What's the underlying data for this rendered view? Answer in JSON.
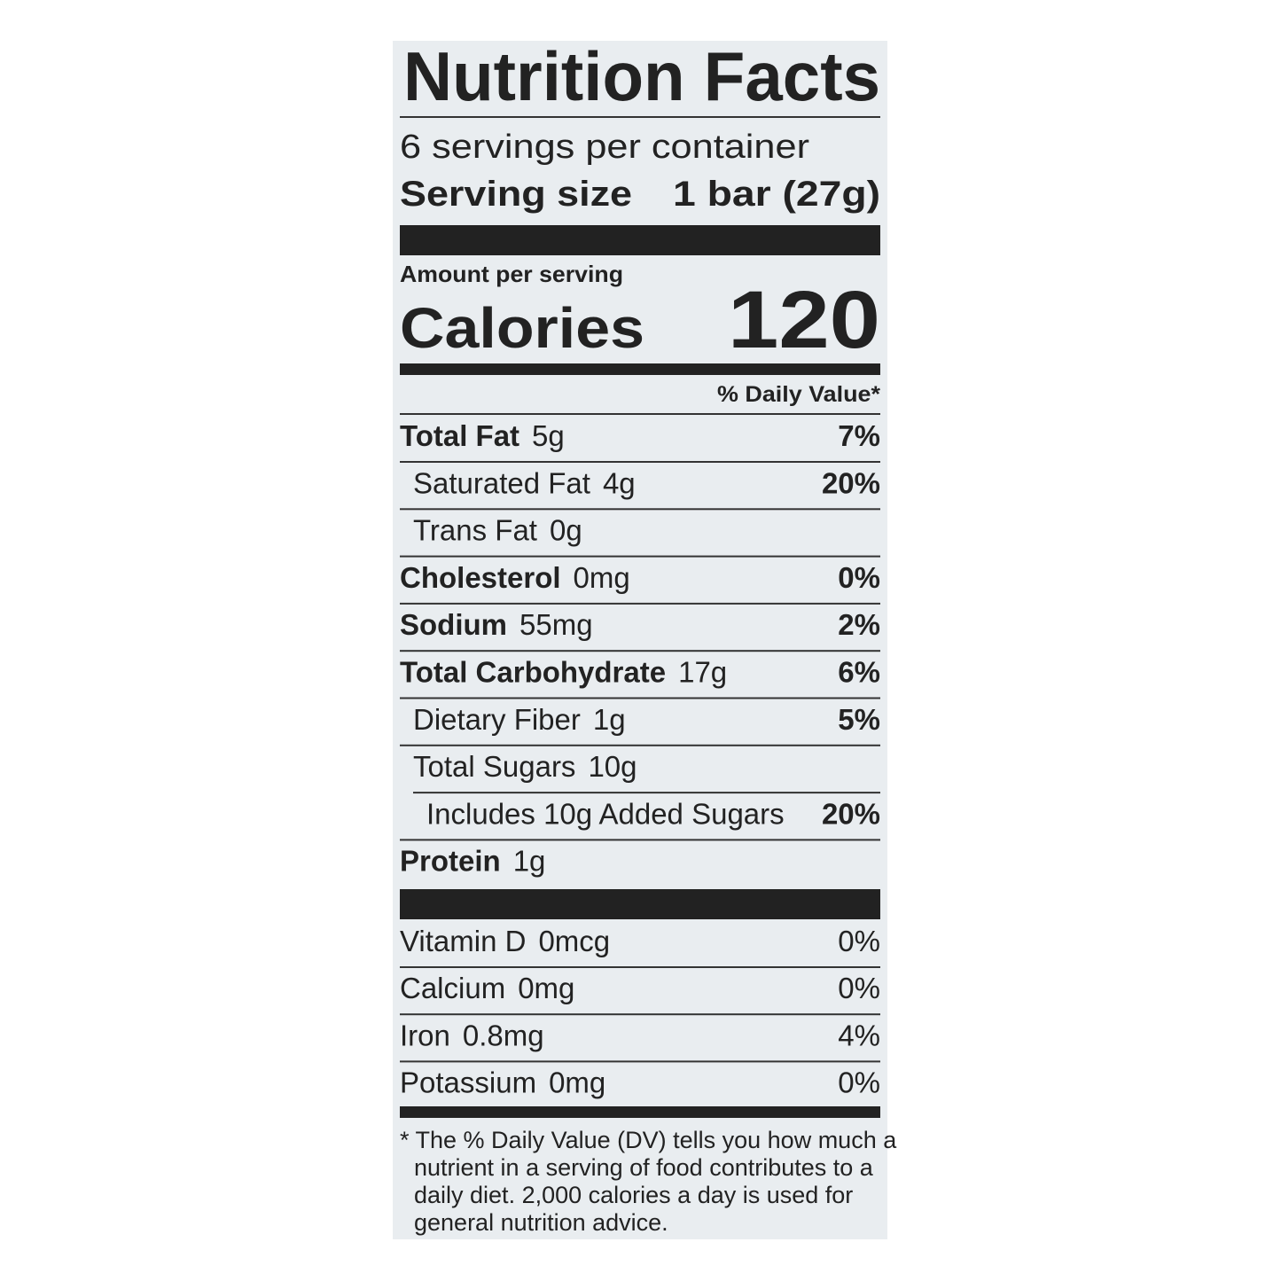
{
  "title": "Nutrition Facts",
  "servings": "6 servings per container",
  "serving_size": {
    "label": "Serving size",
    "value": "1 bar (27g)"
  },
  "amount_per_serving": "Amount per serving",
  "calories": {
    "label": "Calories",
    "value": 120
  },
  "daily_value_header": "% Daily Value*",
  "nutrients": [
    {
      "name": "Total Fat",
      "amount": "5g",
      "dv": "7%"
    },
    {
      "name": "Saturated Fat",
      "amount": "4g",
      "dv": "20%"
    },
    {
      "name": "Trans Fat",
      "amount": "0g"
    },
    {
      "name": "Cholesterol",
      "amount": "0mg",
      "dv": "0%"
    },
    {
      "name": "Sodium",
      "amount": "55mg",
      "dv": "2%"
    },
    {
      "name": "Total Carbohydrate",
      "amount": "17g",
      "dv": "6%"
    },
    {
      "name": "Dietary Fiber",
      "amount": "1g",
      "dv": "5%"
    },
    {
      "name": "Total Sugars",
      "amount": "10g"
    },
    {
      "name": "Includes 10g Added Sugars",
      "dv": "20%"
    },
    {
      "name": "Protein",
      "amount": "1g"
    }
  ],
  "vitamins": [
    {
      "name": "Vitamin D",
      "amount": "0mcg",
      "dv": "0%"
    },
    {
      "name": "Calcium",
      "amount": "0mg",
      "dv": "0%"
    },
    {
      "name": "Iron",
      "amount": "0.8mg",
      "dv": "4%"
    },
    {
      "name": "Potassium",
      "amount": "0mg",
      "dv": "0%"
    }
  ],
  "footnote": [
    "* The % Daily Value (DV) tells you how much a",
    "nutrient in a serving of food contributes to a",
    "daily diet. 2,000 calories a day is used for",
    "general nutrition advice."
  ]
}
